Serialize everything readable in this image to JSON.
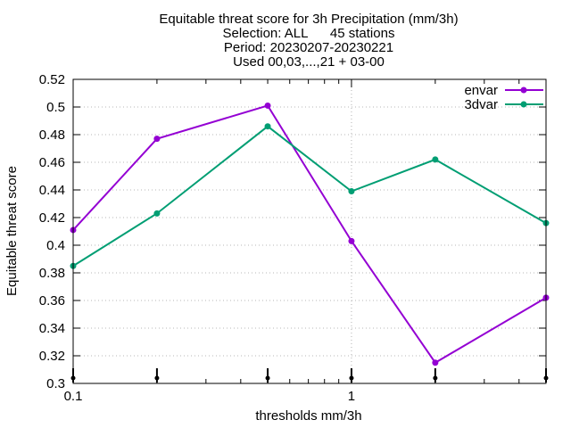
{
  "chart_data": {
    "type": "line",
    "title_lines": [
      "Equitable threat score  for 3h Precipitation (mm/3h)",
      "Selection: ALL      45 stations",
      "Period: 20230207-20230221",
      "Used 00,03,...,21 + 03-00"
    ],
    "xlabel": "thresholds mm/3h",
    "ylabel": "Equitable threat score",
    "x_scale": "log",
    "xlim": [
      0.1,
      5
    ],
    "ylim": [
      0.3,
      0.52
    ],
    "x_ticks": [
      0.1,
      1
    ],
    "x_tick_labels": [
      "0.1",
      "1"
    ],
    "x_minor_ticks": [
      0.2,
      0.3,
      0.4,
      0.5,
      0.6,
      0.7,
      0.8,
      0.9,
      2,
      3,
      4,
      5
    ],
    "y_ticks": [
      0.3,
      0.32,
      0.34,
      0.36,
      0.38,
      0.4,
      0.42,
      0.44,
      0.46,
      0.48,
      0.5,
      0.52
    ],
    "y_tick_labels": [
      "0.3",
      "0.32",
      "0.34",
      "0.36",
      "0.38",
      "0.4",
      "0.42",
      "0.44",
      "0.46",
      "0.48",
      "0.5",
      "0.52"
    ],
    "grid": true,
    "legend_position": "top-right",
    "x": [
      0.1,
      0.2,
      0.5,
      1,
      2,
      5
    ],
    "series": [
      {
        "name": "envar",
        "color": "#9400d3",
        "values": [
          0.411,
          0.477,
          0.501,
          0.403,
          0.315,
          0.362
        ]
      },
      {
        "name": "3dvar",
        "color": "#009e73",
        "values": [
          0.385,
          0.423,
          0.486,
          0.439,
          0.462,
          0.416
        ]
      }
    ],
    "marker_x": [
      0.1,
      0.2,
      0.5,
      1,
      2,
      5
    ]
  }
}
